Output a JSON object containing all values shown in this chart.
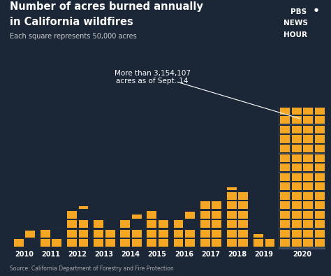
{
  "years": [
    "2010",
    "2011",
    "2012",
    "2013",
    "2014",
    "2015",
    "2016",
    "2017",
    "2018",
    "2019",
    "2020"
  ],
  "acres": [
    95000,
    155000,
    370000,
    255000,
    280000,
    355000,
    295000,
    500000,
    620000,
    125000,
    3154107
  ],
  "square_unit": 50000,
  "bar_color": "#F5A623",
  "bg_color_2020": "#3E4F63",
  "background_color": "#1B2737",
  "title_line1": "Number of acres burned annually",
  "title_line2": "in California wildfires",
  "subtitle": "Each square represents 50,000 acres",
  "annotation_text": "More than 3,154,107\nacres as of Sept. 14",
  "source_text": "Source: California Department of Forestry and Fire Protection",
  "title_color": "#FFFFFF",
  "subtitle_color": "#CCCCCC",
  "annotation_color": "#FFFFFF",
  "source_color": "#AAAAAA",
  "num_cols_regular": 2,
  "num_cols_2020": 4
}
